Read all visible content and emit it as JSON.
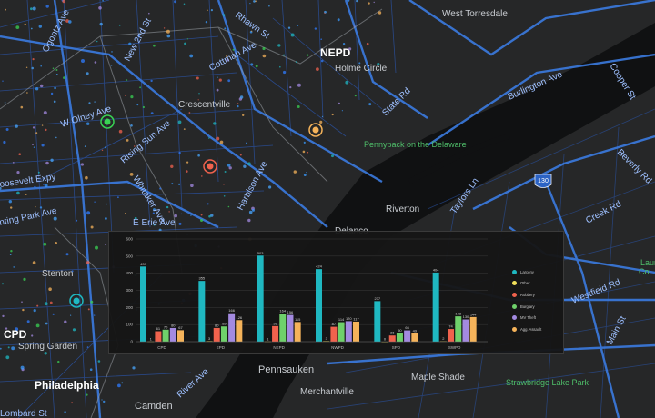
{
  "map": {
    "place_labels": {
      "west_torresdale": "West Torresdale",
      "rhawn_st": "Rhawn St",
      "nepd": "NEPD",
      "new_2nd_st": "New 2nd St",
      "cottman_ave": "Cottman Ave",
      "holme_circle": "Holme Circle",
      "ogontz_ave": "Ogontz Ave",
      "w_olney_ave": "W Olney Ave",
      "crescentville": "Crescentville",
      "state_rd": "State Rd",
      "burlington_ave": "Burlington Ave",
      "cooper_st": "Cooper St",
      "rising_sun_ave": "Rising Sun Ave",
      "pennypack": "Pennypack on the Delaware",
      "whitaker_ave": "Whitaker Ave",
      "harbison_ave": "Harbison Ave",
      "roosevelt_expy": "oosevelt Expy",
      "hunting_park_ave": "nting Park Ave",
      "e_erie_ave": "E Erie Ave",
      "riverton": "Riverton",
      "taylors_ln": "Taylors Ln",
      "creek_rd": "Creek Rd",
      "beverly_rd": "Beverly Rd",
      "delanco": "Delanco",
      "us_130": "130",
      "laurel": "Laur",
      "laurel2": "Co",
      "stenton": "Stenton",
      "westfield_rd": "Westfield Rd",
      "cpd": "CPD",
      "spring_garden": "Spring Garden",
      "main_st": "Main St",
      "pennsauken": "Pennsauken",
      "maple_shade": "Maple Shade",
      "strawbridge": "Strawbridge Lake Park",
      "philadelphia": "Philadelphia",
      "river_ave": "River Ave",
      "camden": "Camden",
      "merchantville": "Merchantville",
      "lombard_st": "Lombard St"
    }
  },
  "chart_data": {
    "type": "bar",
    "categories": [
      "CPD",
      "EPD",
      "NEPD",
      "NWPD",
      "SPD",
      "SWPD"
    ],
    "series": [
      {
        "name": "Larceny",
        "color": "#1fb8c1",
        "values": [
          439,
          355,
          503,
          424,
          237,
          404
        ]
      },
      {
        "name": "Other",
        "color": "#f1e05a",
        "values": [
          1,
          3,
          1,
          3,
          0,
          2
        ]
      },
      {
        "name": "Robbery",
        "color": "#f0624d",
        "values": [
          61,
          80,
          91,
          87,
          36,
          74
        ]
      },
      {
        "name": "Burglary",
        "color": "#6fd16b",
        "values": [
          70,
          89,
          164,
          114,
          50,
          148
        ]
      },
      {
        "name": "MV Theft",
        "color": "#a38ae0",
        "values": [
          80,
          166,
          156,
          120,
          66,
          130
        ]
      },
      {
        "name": "Agg. Assault",
        "color": "#f5b35a",
        "values": [
          67,
          126,
          115,
          117,
          49,
          144
        ]
      }
    ],
    "ylim": [
      0,
      600
    ],
    "yticks": [
      0,
      100,
      200,
      300,
      400,
      500,
      600
    ],
    "grid": true,
    "legend_position": "right",
    "title": "",
    "xlabel": "",
    "ylabel": ""
  },
  "colors": {
    "water": "#101112",
    "land": "#262728",
    "road": "#2c63c4",
    "highway": "#3b7be0",
    "panel_bg": "#161616"
  }
}
